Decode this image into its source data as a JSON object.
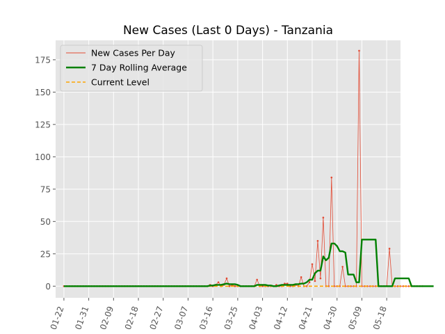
{
  "chart_data": {
    "type": "line",
    "title": "New Cases (Last 0 Days) - Tanzania",
    "xlabel": "",
    "ylabel": "",
    "x_start": "2020-01-22",
    "x_end": "2020-05-20",
    "xlim": [
      "2020-01-19",
      "2020-05-23"
    ],
    "ylim": [
      -9,
      190
    ],
    "x_ticks": [
      "01-22",
      "01-31",
      "02-09",
      "02-18",
      "02-27",
      "03-07",
      "03-16",
      "03-25",
      "04-03",
      "04-12",
      "04-21",
      "04-30",
      "05-09",
      "05-18"
    ],
    "y_ticks": [
      0,
      25,
      50,
      75,
      100,
      125,
      150,
      175
    ],
    "grid": true,
    "legend_position": "top-left",
    "series": [
      {
        "name": "New Cases Per Day",
        "color": "#e24a33",
        "style": "thin-line-with-dots",
        "values": [
          0,
          0,
          0,
          0,
          0,
          0,
          0,
          0,
          0,
          0,
          0,
          0,
          0,
          0,
          0,
          0,
          0,
          0,
          0,
          0,
          0,
          0,
          0,
          0,
          0,
          0,
          0,
          0,
          0,
          0,
          0,
          0,
          0,
          0,
          0,
          0,
          0,
          0,
          0,
          0,
          0,
          0,
          0,
          0,
          0,
          0,
          0,
          0,
          0,
          0,
          0,
          0,
          0,
          1,
          0,
          1,
          3,
          0,
          1,
          6,
          0,
          1,
          0,
          0,
          0,
          0,
          0,
          0,
          0,
          0,
          5,
          0,
          0,
          0,
          0,
          0,
          0,
          1,
          0,
          0,
          2,
          2,
          0,
          0,
          1,
          0,
          7,
          0,
          0,
          3,
          17,
          4,
          35,
          6,
          53,
          0,
          0,
          84,
          0,
          0,
          0,
          15,
          0,
          0,
          0,
          0,
          0,
          182,
          0,
          0,
          0,
          0,
          0,
          0,
          0,
          0,
          0,
          0,
          29,
          0,
          0,
          0,
          0,
          0,
          0,
          0,
          0,
          0,
          0,
          0,
          0
        ]
      },
      {
        "name": "7 Day Rolling Average",
        "color": "#008000",
        "style": "thick-line",
        "values": [
          0,
          0,
          0,
          0,
          0,
          0,
          0,
          0,
          0,
          0,
          0,
          0,
          0,
          0,
          0,
          0,
          0,
          0,
          0,
          0,
          0,
          0,
          0,
          0,
          0,
          0,
          0,
          0,
          0,
          0,
          0,
          0,
          0,
          0,
          0,
          0,
          0,
          0,
          0,
          0,
          0,
          0,
          0,
          0,
          0,
          0,
          0,
          0,
          0,
          0,
          0,
          0,
          0,
          0.5,
          0.5,
          1,
          1,
          1,
          1.5,
          2,
          1.5,
          1.5,
          1.5,
          1,
          0,
          0,
          0,
          0,
          0,
          0,
          1,
          1,
          1,
          1,
          0.5,
          0.5,
          0,
          0,
          0.5,
          1,
          1,
          1,
          1,
          1,
          1.5,
          1.5,
          2,
          2,
          3,
          5,
          5,
          10,
          12,
          12,
          23,
          20,
          22,
          33,
          33,
          31,
          27,
          27,
          26,
          9,
          9,
          9,
          3,
          3,
          36,
          36,
          36,
          36,
          36,
          36,
          0,
          0,
          0,
          0,
          0,
          0,
          6,
          6,
          6,
          6,
          6,
          6,
          0,
          0,
          0,
          0,
          0,
          0,
          0,
          0,
          0
        ]
      },
      {
        "name": "Current Level",
        "color": "#ffa500",
        "style": "dashed",
        "values": [
          0,
          0
        ]
      }
    ]
  }
}
